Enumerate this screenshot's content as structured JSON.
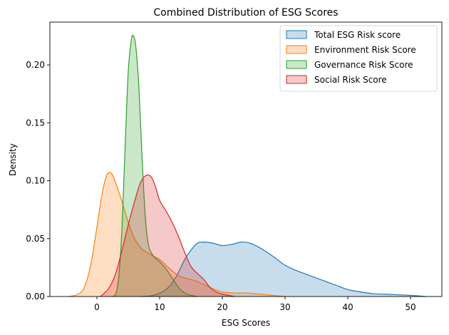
{
  "chart_data": {
    "type": "area",
    "title": "Combined Distribution of ESG Scores",
    "xlabel": "ESG Scores",
    "ylabel": "Density",
    "xlim": [
      -7.5,
      55
    ],
    "ylim": [
      0,
      0.237
    ],
    "x_ticks": [
      0,
      10,
      20,
      30,
      40,
      50
    ],
    "y_ticks": [
      0.0,
      0.05,
      0.1,
      0.15,
      0.2
    ],
    "y_tick_labels": [
      "0.00",
      "0.05",
      "0.10",
      "0.15",
      "0.20"
    ],
    "grid": false,
    "legend_position": "top-right",
    "series": [
      {
        "name": "Total ESG Risk score",
        "color": "#1f77b4",
        "points": [
          [
            7,
            0
          ],
          [
            9,
            0.001
          ],
          [
            11,
            0.006
          ],
          [
            12.5,
            0.016
          ],
          [
            14,
            0.032
          ],
          [
            15,
            0.04
          ],
          [
            16,
            0.046
          ],
          [
            17,
            0.047
          ],
          [
            18.5,
            0.046
          ],
          [
            20,
            0.044
          ],
          [
            21.5,
            0.045
          ],
          [
            23,
            0.047
          ],
          [
            24.5,
            0.046
          ],
          [
            26,
            0.042
          ],
          [
            28,
            0.035
          ],
          [
            30,
            0.027
          ],
          [
            32,
            0.022
          ],
          [
            34,
            0.018
          ],
          [
            36,
            0.014
          ],
          [
            38,
            0.01
          ],
          [
            40,
            0.006
          ],
          [
            42,
            0.004
          ],
          [
            44,
            0.0025
          ],
          [
            46,
            0.002
          ],
          [
            48,
            0.0015
          ],
          [
            50,
            0.001
          ],
          [
            52.5,
            0
          ]
        ]
      },
      {
        "name": "Environment Risk Score",
        "color": "#ff7f0e",
        "points": [
          [
            -4.5,
            0
          ],
          [
            -3,
            0.002
          ],
          [
            -2,
            0.008
          ],
          [
            -1,
            0.027
          ],
          [
            0,
            0.06
          ],
          [
            0.8,
            0.088
          ],
          [
            1.5,
            0.104
          ],
          [
            2,
            0.107
          ],
          [
            2.5,
            0.105
          ],
          [
            3,
            0.098
          ],
          [
            4,
            0.082
          ],
          [
            5,
            0.064
          ],
          [
            6,
            0.05
          ],
          [
            7,
            0.042
          ],
          [
            8,
            0.038
          ],
          [
            9,
            0.035
          ],
          [
            10,
            0.032
          ],
          [
            11,
            0.027
          ],
          [
            12,
            0.022
          ],
          [
            13,
            0.018
          ],
          [
            14,
            0.016
          ],
          [
            16,
            0.013
          ],
          [
            18,
            0.008
          ],
          [
            20,
            0.004
          ],
          [
            22,
            0.003
          ],
          [
            24,
            0.003
          ],
          [
            26,
            0.002
          ],
          [
            28,
            0.001
          ],
          [
            30,
            0
          ]
        ]
      },
      {
        "name": "Governance Risk Score",
        "color": "#2ca02c",
        "points": [
          [
            2.5,
            0
          ],
          [
            3,
            0.002
          ],
          [
            3.5,
            0.018
          ],
          [
            4,
            0.06
          ],
          [
            4.5,
            0.13
          ],
          [
            5,
            0.195
          ],
          [
            5.5,
            0.222
          ],
          [
            5.8,
            0.225
          ],
          [
            6.2,
            0.216
          ],
          [
            6.7,
            0.18
          ],
          [
            7.2,
            0.12
          ],
          [
            7.7,
            0.07
          ],
          [
            8.2,
            0.045
          ],
          [
            9,
            0.035
          ],
          [
            10,
            0.03
          ],
          [
            11,
            0.024
          ],
          [
            12,
            0.016
          ],
          [
            13,
            0.008
          ],
          [
            14,
            0.003
          ],
          [
            15,
            0.001
          ],
          [
            16,
            0
          ]
        ]
      },
      {
        "name": "Social Risk Score",
        "color": "#d62728",
        "points": [
          [
            0.5,
            0
          ],
          [
            1,
            0.002
          ],
          [
            2,
            0.008
          ],
          [
            3,
            0.02
          ],
          [
            4,
            0.04
          ],
          [
            5,
            0.062
          ],
          [
            6,
            0.082
          ],
          [
            7,
            0.099
          ],
          [
            8,
            0.105
          ],
          [
            8.8,
            0.102
          ],
          [
            9.5,
            0.092
          ],
          [
            10,
            0.083
          ],
          [
            11,
            0.074
          ],
          [
            12,
            0.064
          ],
          [
            13,
            0.052
          ],
          [
            14,
            0.038
          ],
          [
            15,
            0.026
          ],
          [
            16,
            0.02
          ],
          [
            17,
            0.015
          ],
          [
            18,
            0.008
          ],
          [
            19,
            0.004
          ],
          [
            20,
            0.002
          ],
          [
            21,
            0.001
          ],
          [
            22,
            0
          ]
        ]
      }
    ]
  }
}
